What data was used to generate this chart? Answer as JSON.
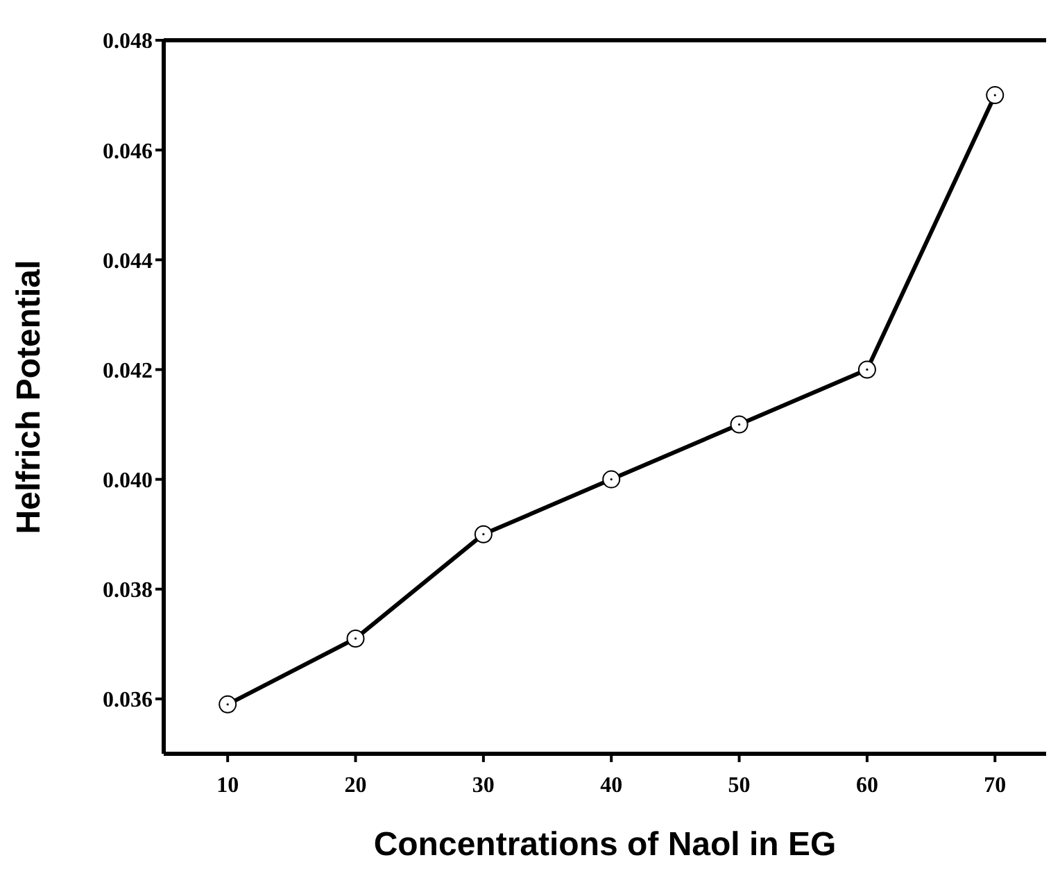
{
  "chart_data": {
    "type": "line",
    "xlabel": "Concentrations of Naol in EG",
    "ylabel": "Helfrich Potential",
    "x": [
      10,
      20,
      30,
      40,
      50,
      60,
      70
    ],
    "series": [
      {
        "color": "#000000",
        "values": [
          0.0359,
          0.0371,
          0.039,
          0.04,
          0.041,
          0.042,
          0.047
        ]
      }
    ],
    "xlim": [
      5,
      74
    ],
    "xticks": [
      10,
      20,
      30,
      40,
      50,
      60,
      70
    ],
    "ylim": [
      0.035,
      0.048
    ],
    "yticks": [
      {
        "value": 0.036,
        "label": "0.036"
      },
      {
        "value": 0.038,
        "label": "0.038"
      },
      {
        "value": 0.04,
        "label": "0.040"
      },
      {
        "value": 0.042,
        "label": "0.042"
      },
      {
        "value": 0.044,
        "label": "0.044"
      },
      {
        "value": 0.046,
        "label": "0.046"
      },
      {
        "value": 0.048,
        "label": "0.048"
      }
    ],
    "grid": false,
    "legend": false,
    "marker": "circle",
    "line_style": "solid"
  }
}
